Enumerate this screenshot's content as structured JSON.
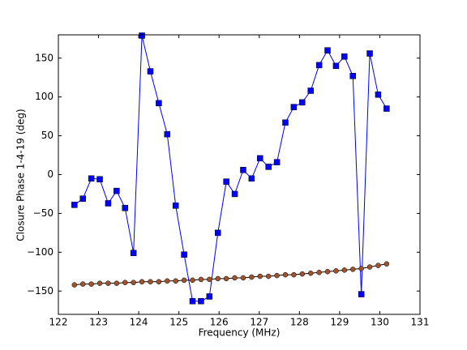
{
  "chart_data": {
    "type": "line",
    "xlabel": "Frequency (MHz)",
    "ylabel": "Closure Phase 1-4-19 (deg)",
    "x": [
      122.4,
      122.61,
      122.82,
      123.03,
      123.24,
      123.45,
      123.66,
      123.87,
      124.08,
      124.29,
      124.5,
      124.71,
      124.92,
      125.13,
      125.34,
      125.55,
      125.76,
      125.97,
      126.18,
      126.39,
      126.6,
      126.81,
      127.02,
      127.23,
      127.44,
      127.65,
      127.86,
      128.07,
      128.28,
      128.49,
      128.7,
      128.91,
      129.12,
      129.33,
      129.54,
      129.75,
      129.96,
      130.17
    ],
    "series": [
      {
        "color": "#0000ff",
        "marker": "square",
        "marker_color": "#0000ff",
        "values": [
          -39,
          -31,
          -5,
          -6,
          -37,
          -21,
          -43,
          -101,
          179,
          133,
          92,
          52,
          -40,
          -103,
          -163,
          -163,
          -157,
          -75,
          -9,
          -25,
          6,
          -5,
          21,
          10,
          16,
          67,
          87,
          93,
          108,
          141,
          160,
          140,
          152,
          127,
          -154,
          156,
          103,
          85
        ]
      },
      {
        "color": "#000000",
        "marker": "circle",
        "marker_color": "#a0522d",
        "values": [
          -142,
          -141,
          -141,
          -140,
          -140,
          -140,
          -139,
          -139,
          -138,
          -138,
          -138,
          -137,
          -137,
          -136,
          -136,
          -135,
          -135,
          -134,
          -134,
          -133,
          -133,
          -132,
          -131,
          -131,
          -130,
          -129,
          -129,
          -128,
          -127,
          -126,
          -125,
          -124,
          -123,
          -122,
          -121,
          -119,
          -117,
          -115
        ]
      }
    ],
    "xlim": [
      122,
      131
    ],
    "xticks": [
      122,
      123,
      124,
      125,
      126,
      127,
      128,
      129,
      130,
      131
    ],
    "ylim": [
      -180,
      180
    ],
    "yticks": [
      {
        "value": -150,
        "label": "−150"
      },
      {
        "value": -100,
        "label": "−100"
      },
      {
        "value": -50,
        "label": "−50"
      },
      0,
      50,
      100,
      150
    ]
  }
}
